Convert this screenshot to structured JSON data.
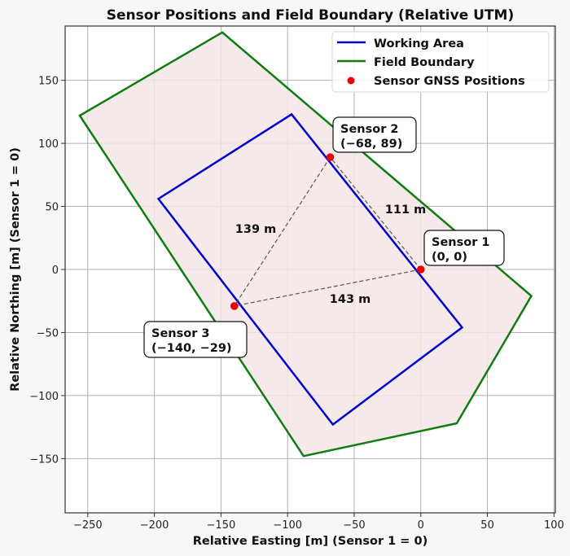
{
  "chart_data": {
    "type": "scatter",
    "title": "Sensor Positions and Field Boundary (Relative UTM)",
    "xlabel": "Relative Easting [m] (Sensor 1 = 0)",
    "ylabel": "Relative Northing [m] (Sensor 1 = 0)",
    "xlim": [
      -267,
      101
    ],
    "ylim": [
      -193,
      193
    ],
    "xticks": [
      -250,
      -200,
      -150,
      -100,
      -50,
      0,
      50,
      100
    ],
    "yticks": [
      -150,
      -100,
      -50,
      0,
      50,
      100,
      150
    ],
    "xtick_labels": [
      "−250",
      "−200",
      "−150",
      "−100",
      "−50",
      "0",
      "50",
      "100"
    ],
    "ytick_labels": [
      "−150",
      "−100",
      "−50",
      "0",
      "50",
      "100",
      "150"
    ],
    "grid": true,
    "legend_position": "top-right",
    "legend": [
      {
        "label": "Working Area",
        "kind": "line",
        "color": "#0000cc"
      },
      {
        "label": "Field Boundary",
        "kind": "line",
        "color": "#107c10"
      },
      {
        "label": "Sensor GNSS Positions",
        "kind": "marker",
        "color": "#ee0000"
      }
    ],
    "field_boundary": {
      "name": "Field Boundary",
      "color": "#107c10",
      "fill": "#f3e5e6",
      "points": [
        [
          -256,
          122
        ],
        [
          -149,
          188
        ],
        [
          83,
          -21
        ],
        [
          27,
          -122
        ],
        [
          -88,
          -148
        ]
      ]
    },
    "working_area": {
      "name": "Working Area",
      "color": "#0000cc",
      "points": [
        [
          -197,
          56
        ],
        [
          -97,
          123
        ],
        [
          31,
          -46
        ],
        [
          -66,
          -123
        ]
      ]
    },
    "sensors": [
      {
        "name": "Sensor 1",
        "x": 0,
        "y": 0,
        "label": "Sensor 1",
        "coords": "(0, 0)"
      },
      {
        "name": "Sensor 2",
        "x": -68,
        "y": 89,
        "label": "Sensor 2",
        "coords": "(−68, 89)"
      },
      {
        "name": "Sensor 3",
        "x": -140,
        "y": -29,
        "label": "Sensor 3",
        "coords": "(−140, −29)"
      }
    ],
    "distances": [
      {
        "from": 0,
        "to": 1,
        "label": "111 m"
      },
      {
        "from": 1,
        "to": 2,
        "label": "139 m"
      },
      {
        "from": 0,
        "to": 2,
        "label": "143 m"
      }
    ]
  }
}
